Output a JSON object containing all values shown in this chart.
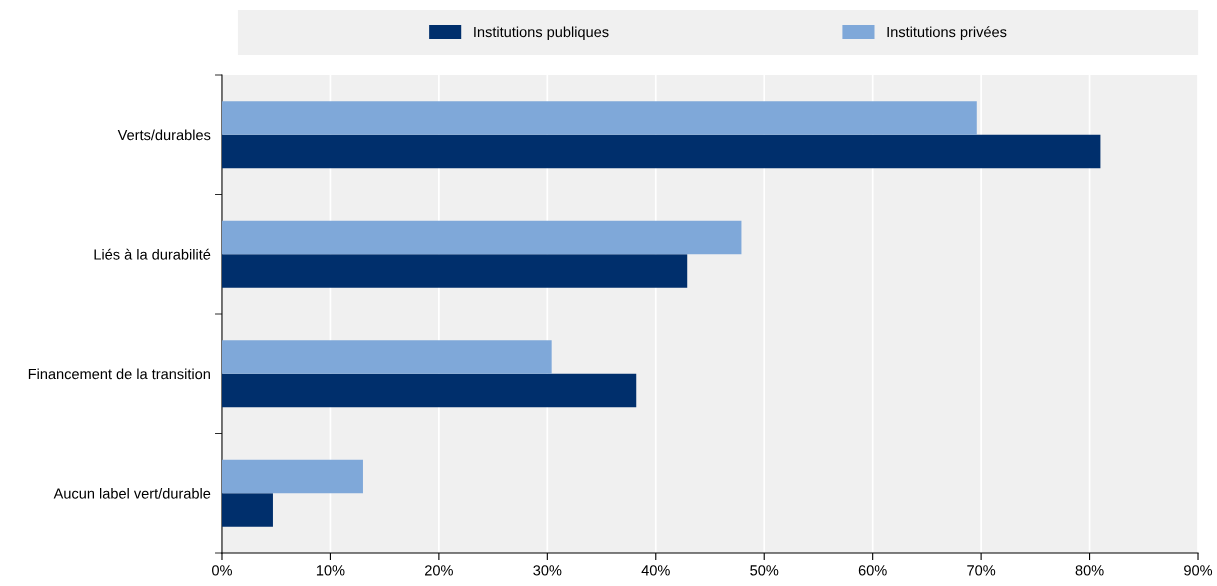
{
  "chart_data": {
    "type": "bar",
    "orientation": "horizontal",
    "categories": [
      "Verts/durables",
      "Liés à la durabilité",
      "Financement de la transition",
      "Aucun label vert/durable"
    ],
    "series": [
      {
        "name": "Institutions publiques",
        "color": "#002f6c",
        "values": [
          81.0,
          42.9,
          38.2,
          4.7
        ]
      },
      {
        "name": "Institutions privées",
        "color": "#7fa8d9",
        "values": [
          69.6,
          47.9,
          30.4,
          13.0
        ]
      }
    ],
    "xlim": [
      0,
      90
    ],
    "xticks": [
      {
        "value": 0,
        "label": "0%"
      },
      {
        "value": 10,
        "label": "10%"
      },
      {
        "value": 20,
        "label": "20%"
      },
      {
        "value": 30,
        "label": "30%"
      },
      {
        "value": 40,
        "label": "40%"
      },
      {
        "value": 50,
        "label": "50%"
      },
      {
        "value": 60,
        "label": "60%"
      },
      {
        "value": 70,
        "label": "70%"
      },
      {
        "value": 80,
        "label": "80%"
      },
      {
        "value": 90,
        "label": "90%"
      }
    ],
    "grid": "x",
    "legend": "top"
  }
}
